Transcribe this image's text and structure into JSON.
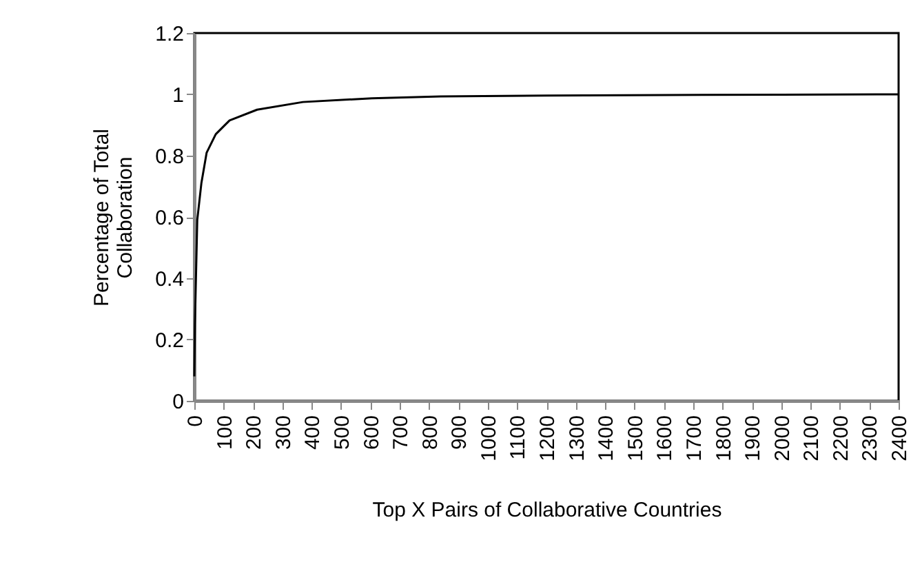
{
  "chart_data": {
    "type": "line",
    "xlabel": "Top X Pairs of Collaborative Countries",
    "ylabel": "Percentage of Total Collaboration",
    "x": [
      0,
      2,
      5,
      10,
      24,
      42,
      73,
      120,
      214,
      370,
      605,
      840,
      1200,
      1600,
      2000,
      2400
    ],
    "series": [
      {
        "color": "#000000",
        "values": [
          0.08,
          0.25,
          0.38,
          0.59,
          0.71,
          0.81,
          0.87,
          0.915,
          0.95,
          0.975,
          0.987,
          0.993,
          0.996,
          0.998,
          0.999,
          1.0
        ]
      }
    ],
    "xlim": [
      0,
      2400
    ],
    "xticks": [
      0,
      100,
      200,
      300,
      400,
      500,
      600,
      700,
      800,
      900,
      1000,
      1100,
      1200,
      1300,
      1400,
      1500,
      1600,
      1700,
      1800,
      1900,
      2000,
      2100,
      2200,
      2300,
      2400
    ],
    "ylim": [
      0,
      1.2
    ],
    "yticks": [
      0,
      0.2,
      0.4,
      0.6,
      0.8,
      1,
      1.2
    ],
    "grid": false,
    "legend": false,
    "marker": "none",
    "line_style": "solid"
  }
}
